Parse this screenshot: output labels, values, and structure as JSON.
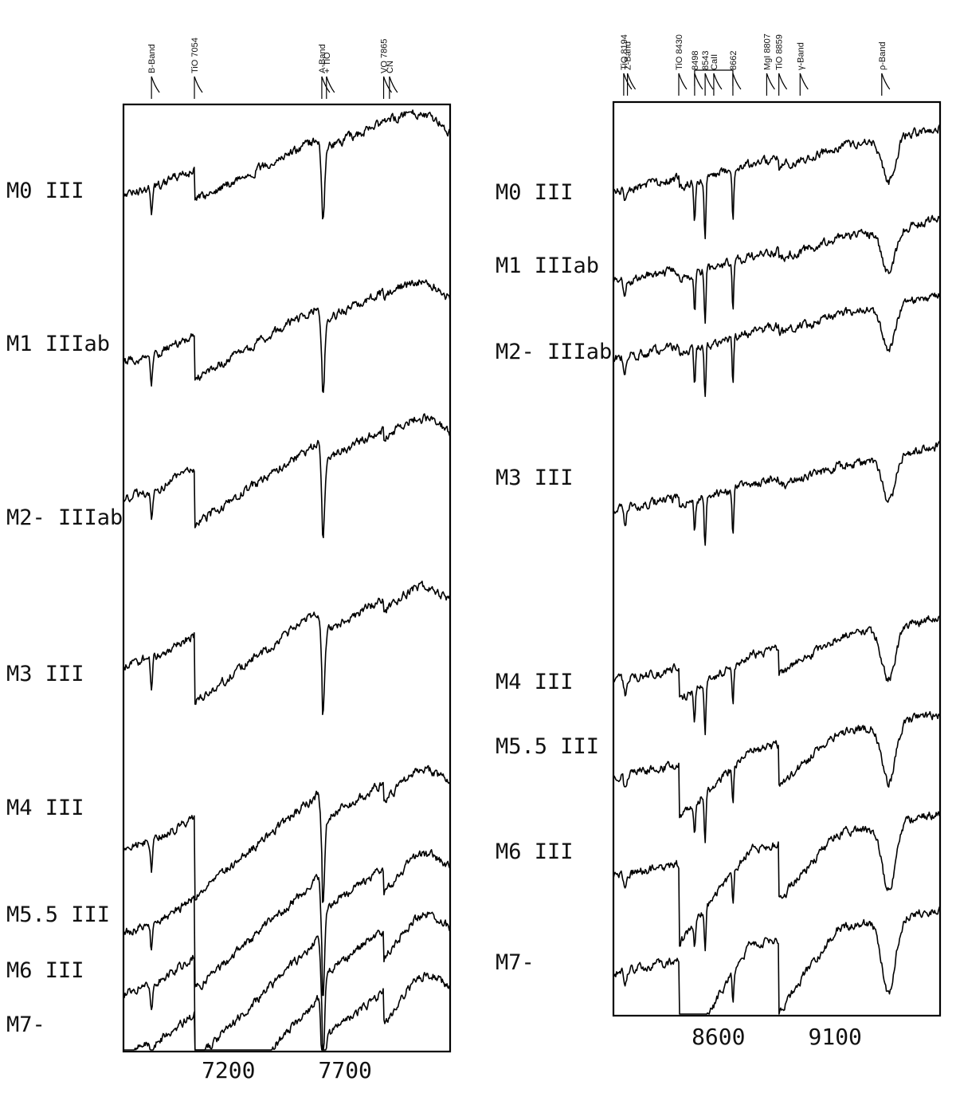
{
  "chart_data": [
    {
      "type": "line",
      "title": "",
      "xlabel": "",
      "ylabel": "",
      "xticks": [
        "7200",
        "7700"
      ],
      "xlim": [
        6750,
        8150
      ],
      "grid": false,
      "legend": "none",
      "features": [
        {
          "label": "B-Band",
          "x": 6870
        },
        {
          "label": "TiO 7054",
          "x": 7054
        },
        {
          "label": "A-Band",
          "x": 7600
        },
        {
          "label": "+ TiO",
          "x": 7620
        },
        {
          "label": "VO 7865",
          "x": 7865
        },
        {
          "label": "CN",
          "x": 7890
        }
      ],
      "series": [
        {
          "name": "M0 III",
          "label": "M0 III"
        },
        {
          "name": "M1 IIIab",
          "label": "M1 IIIab"
        },
        {
          "name": "M2- IIIab",
          "label": "M2- IIIab"
        },
        {
          "name": "M3 III",
          "label": "M3 III"
        },
        {
          "name": "M4 III",
          "label": "M4 III"
        },
        {
          "name": "M5.5 III",
          "label": "M5.5 III"
        },
        {
          "name": "M6 III",
          "label": "M6 III"
        },
        {
          "name": "M7-",
          "label": "M7-"
        }
      ]
    },
    {
      "type": "line",
      "title": "",
      "xlabel": "",
      "ylabel": "",
      "xticks": [
        "8600",
        "9100"
      ],
      "xlim": [
        8150,
        9550
      ],
      "grid": false,
      "legend": "none",
      "features": [
        {
          "label": "TiO 8194",
          "x": 8194
        },
        {
          "label": "Z-Band",
          "x": 8210
        },
        {
          "label": "TiO 8430",
          "x": 8430
        },
        {
          "label": "8498",
          "x": 8498
        },
        {
          "label": "8543",
          "x": 8543
        },
        {
          "label": "CaII",
          "x": 8580
        },
        {
          "label": "8662",
          "x": 8662
        },
        {
          "label": "MgI 8807",
          "x": 8807
        },
        {
          "label": "TiO 8859",
          "x": 8859
        },
        {
          "label": "γ-Band",
          "x": 8950
        },
        {
          "label": "ρ-Band",
          "x": 9300
        }
      ],
      "series": [
        {
          "name": "M0 III",
          "label": "M0 III"
        },
        {
          "name": "M1 IIIab",
          "label": "M1 IIIab"
        },
        {
          "name": "M2- IIIab",
          "label": "M2- IIIab"
        },
        {
          "name": "M3 III",
          "label": "M3 III"
        },
        {
          "name": "M4 III",
          "label": "M4 III"
        },
        {
          "name": "M5.5 III",
          "label": "M5.5 III"
        },
        {
          "name": "M6 III",
          "label": "M6 III"
        },
        {
          "name": "M7-",
          "label": "M7-"
        }
      ]
    }
  ]
}
